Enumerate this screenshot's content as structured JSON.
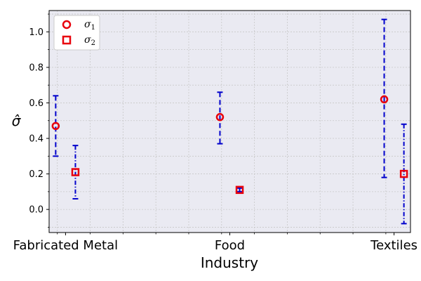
{
  "chart_data": {
    "type": "scatter",
    "title": "",
    "xlabel": "Industry",
    "ylabel": "σ̂",
    "categories": [
      "Fabricated Metal",
      "Food",
      "Textiles"
    ],
    "ylim": [
      -0.13,
      1.12
    ],
    "yticks": [
      0.0,
      0.2,
      0.4,
      0.6,
      0.8,
      1.0
    ],
    "ytick_labels": [
      "0.0",
      "0.2",
      "0.4",
      "0.6",
      "0.8",
      "1.0"
    ],
    "grid": true,
    "legend_position": "top-left",
    "series": [
      {
        "name": "σ1",
        "legend_main": "σ",
        "legend_sub": "1",
        "marker": "circle",
        "error_style": "dashed",
        "values": [
          0.47,
          0.52,
          0.62
        ],
        "lower": [
          0.3,
          0.37,
          0.18
        ],
        "upper": [
          0.64,
          0.66,
          1.07
        ]
      },
      {
        "name": "σ2",
        "legend_main": "σ",
        "legend_sub": "2",
        "marker": "square",
        "error_style": "dashdot",
        "values": [
          0.21,
          0.11,
          0.2
        ],
        "lower": [
          0.06,
          0.1,
          -0.08
        ],
        "upper": [
          0.36,
          0.12,
          0.48
        ]
      }
    ],
    "colors": {
      "marker": "#e8000b",
      "errorbar": "#0000cc",
      "plot_background": "#eaeaf2",
      "grid": "#c8c8c8"
    }
  }
}
